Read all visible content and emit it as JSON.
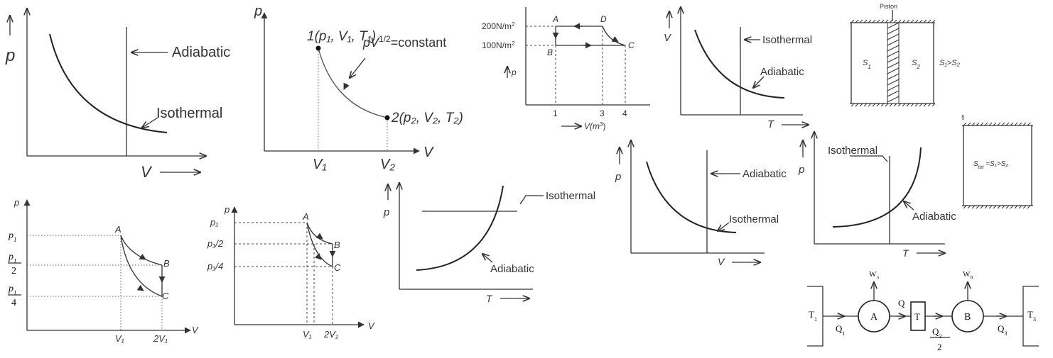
{
  "d1": {
    "p": "p",
    "V": "V",
    "adiabatic": "Adiabatic",
    "isothermal": "Isothermal"
  },
  "d2": {
    "p": "p",
    "V": "V",
    "pt1": "1(p₁, V₁, T₁)",
    "pt2": "2(p₂, V₂, T₂)",
    "curve": "pV",
    "exp": "1/2",
    "const": "=constant",
    "v1": "V₁",
    "v2": "V₂"
  },
  "d3": {
    "y200": "200N/m",
    "y100": "100N/m",
    "sq": "2",
    "A": "A",
    "B": "B",
    "C": "C",
    "D": "D",
    "p": "p",
    "x1": "1",
    "x3": "3",
    "x4": "4",
    "xlabel": "V(m",
    "cube": "3",
    "close": ")"
  },
  "d4": {
    "V": "V",
    "T": "T",
    "isothermal": "Isothermal",
    "adiabatic": "Adiabatic"
  },
  "d5": {
    "piston": "Piston",
    "s1": "S",
    "s1sub": "1",
    "s2": "S",
    "s2sub": "2",
    "rel": "S₁>S₂",
    "mark": "§",
    "tot": "S",
    "totsub": "tot",
    "totrel": " =S₁>S₂"
  },
  "d6": {
    "p": "p",
    "p1": "p",
    "p1sub": "1",
    "half": "2",
    "quarter": "4",
    "A": "A",
    "B": "B",
    "C": "C",
    "v1": "V₁",
    "v2": "2V₁",
    "V": "V"
  },
  "d7": {
    "p": "p",
    "y1": "p₁",
    "y2": "p₁/2",
    "y3": "p₁/4",
    "A": "A",
    "B": "B",
    "C": "C",
    "v1": "V₁",
    "v2": "2V₁",
    "V": "V"
  },
  "d8": {
    "p": "p",
    "T": "T",
    "isothermal": "Isothermal",
    "adiabatic": "Adiabatic"
  },
  "d9": {
    "p": "p",
    "V": "V",
    "adiabatic": "Adiabatic",
    "isothermal": "Isothermal"
  },
  "d10": {
    "p": "p",
    "T": "T",
    "isothermal": "Isothermal",
    "adiabatic": "Adiabatic"
  },
  "d11": {
    "t1": "T",
    "t1sub": "1",
    "t3": "T",
    "t3sub": "3",
    "wa": "W",
    "wasub": "A",
    "wb": "W",
    "wbsub": "B",
    "a": "A",
    "b": "B",
    "t": "T",
    "q": "Q",
    "q1": "Q",
    "q1sub": "1",
    "q2": "Q",
    "q2sub": "2",
    "q2den": "2",
    "q3": "Q",
    "q3sub": "3"
  }
}
